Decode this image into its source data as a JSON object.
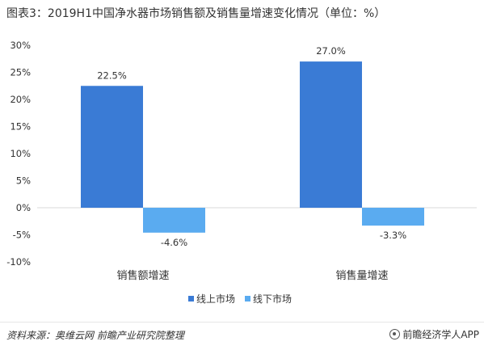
{
  "title": "图表3：2019H1中国净水器市场销售额及销售量增速变化情况（单位：%）",
  "chart_data": {
    "type": "bar",
    "categories": [
      "销售额增速",
      "销售量增速"
    ],
    "series": [
      {
        "name": "线上市场",
        "values": [
          22.5,
          27.0
        ],
        "labels": [
          "22.5%",
          "27.0%"
        ],
        "color": "#3a7bd5"
      },
      {
        "name": "线下市场",
        "values": [
          -4.6,
          -3.3
        ],
        "labels": [
          "-4.6%",
          "-3.3%"
        ],
        "color": "#5aabf0"
      }
    ],
    "ylim": [
      -10,
      30
    ],
    "yticks": [
      30,
      25,
      20,
      15,
      10,
      5,
      0,
      -5,
      -10
    ],
    "ytick_labels": [
      "30%",
      "25%",
      "20%",
      "15%",
      "10%",
      "5%",
      "0%",
      "-5%",
      "-10%"
    ],
    "legend_position": "bottom",
    "grid": false
  },
  "footer": {
    "source": "资料来源：奥维云网 前瞻产业研究院整理",
    "credit": "前瞻经济学人APP"
  },
  "icons": {
    "credit": "qianzhan-logo-icon"
  }
}
